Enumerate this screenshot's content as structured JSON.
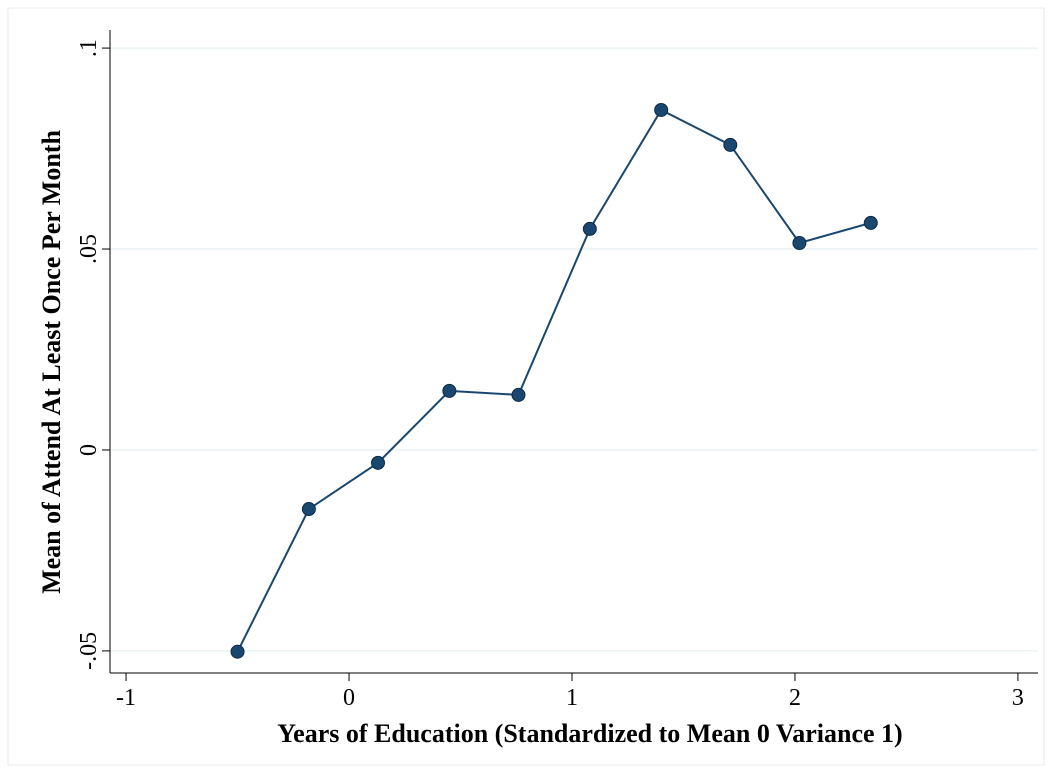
{
  "chart_data": {
    "type": "line",
    "x_label": "Years of Education (Standardized to Mean 0 Variance 1)",
    "y_label": "Mean of Attend At Least Once Per Month",
    "x": [
      -0.5,
      -0.18,
      0.13,
      0.45,
      0.76,
      1.08,
      1.4,
      1.71,
      2.02,
      2.34
    ],
    "series": [
      {
        "color": "#1a476f",
        "values": [
          -0.0502,
          -0.0147,
          -0.0032,
          0.0147,
          0.0137,
          0.055,
          0.0846,
          0.0759,
          0.0515,
          0.0565
        ]
      }
    ],
    "xlim": [
      -1.072,
      3.09
    ],
    "xticks": [
      -1,
      0,
      1,
      2,
      3
    ],
    "ylim": [
      -0.0555,
      0.1045
    ],
    "yticks": [
      {
        "value": -0.05,
        "label": "-.05"
      },
      {
        "value": 0,
        "label": "0"
      },
      {
        "value": 0.05,
        "label": ".05"
      },
      {
        "value": 0.1,
        "label": ".1"
      }
    ],
    "grid": true
  }
}
